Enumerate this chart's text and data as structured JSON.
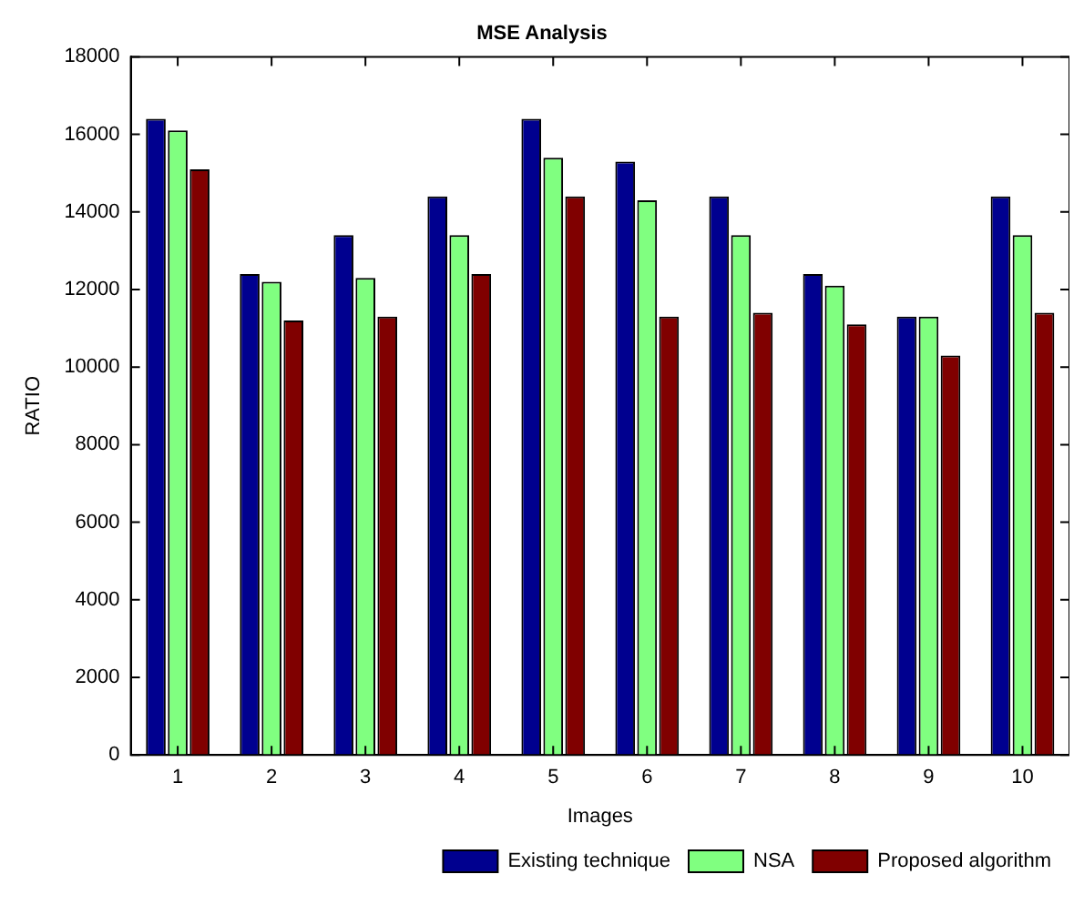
{
  "chart_data": {
    "type": "bar",
    "title": "MSE Analysis",
    "xlabel": "Images",
    "ylabel": "RATIO",
    "categories": [
      "1",
      "2",
      "3",
      "4",
      "5",
      "6",
      "7",
      "8",
      "9",
      "10"
    ],
    "series": [
      {
        "name": "Existing technique",
        "color": "#00008f",
        "values": [
          16400,
          12400,
          13400,
          14400,
          16400,
          15300,
          14400,
          12400,
          11300,
          14400
        ]
      },
      {
        "name": "NSA",
        "color": "#80ff80",
        "values": [
          16100,
          12200,
          12300,
          13400,
          15400,
          14300,
          13400,
          12100,
          11300,
          13400
        ]
      },
      {
        "name": "Proposed algorithm",
        "color": "#800000",
        "values": [
          15100,
          11200,
          11300,
          12400,
          14400,
          11300,
          11400,
          11100,
          10300,
          11400
        ]
      }
    ],
    "ylim": [
      0,
      18000
    ],
    "yticks": [
      0,
      2000,
      4000,
      6000,
      8000,
      10000,
      12000,
      14000,
      16000,
      18000
    ],
    "grid": false,
    "legend": "bottom right"
  }
}
